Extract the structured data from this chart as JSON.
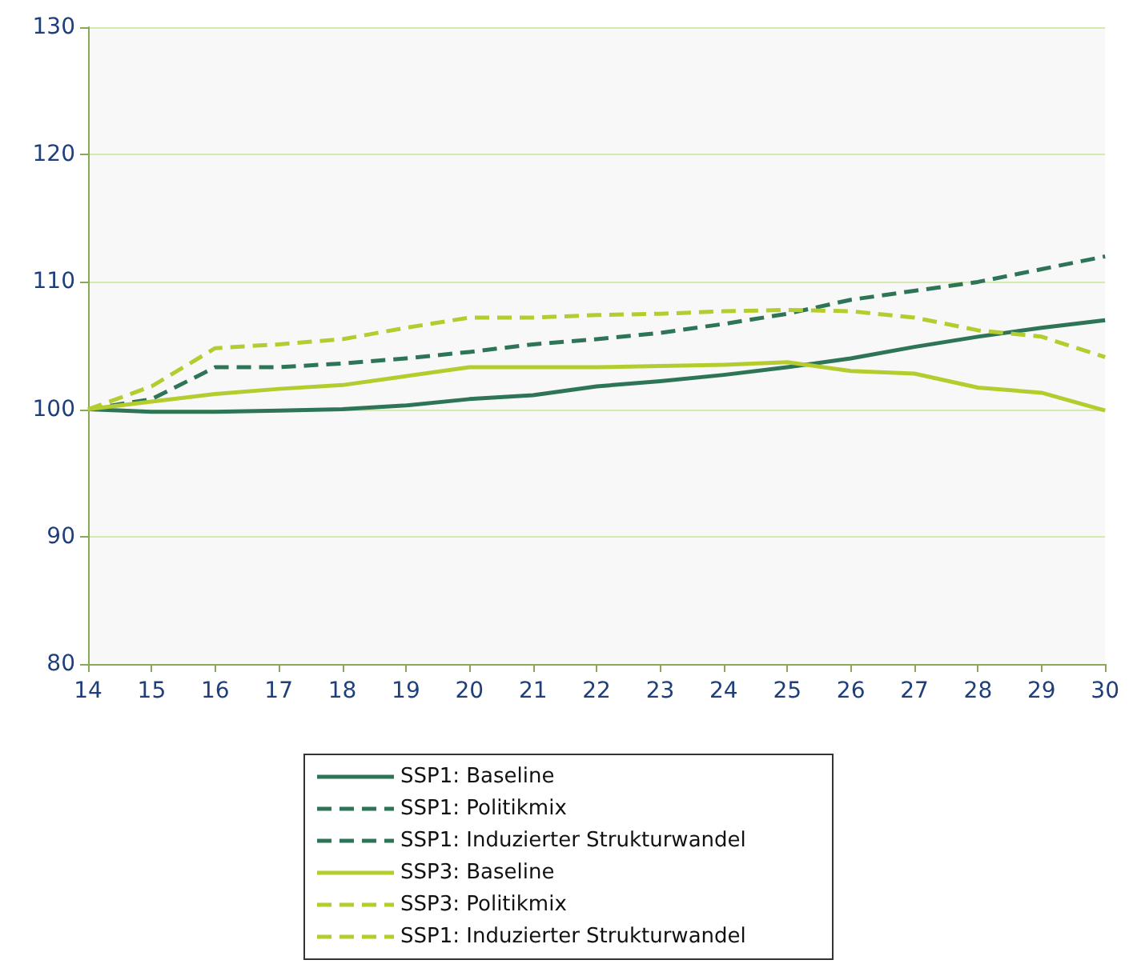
{
  "chart_data": {
    "type": "line",
    "categories": [
      "14",
      "15",
      "16",
      "17",
      "18",
      "19",
      "20",
      "21",
      "22",
      "23",
      "24",
      "25",
      "26",
      "27",
      "28",
      "29",
      "30"
    ],
    "ylim": [
      80,
      130
    ],
    "yticks": [
      80,
      90,
      100,
      110,
      120,
      130
    ],
    "grid": "y",
    "legend": "bottom",
    "marker": "none",
    "series": [
      {
        "name": "SSP1: Baseline",
        "color": "#2e7557",
        "line_style": "solid",
        "values": [
          100,
          99.8,
          99.8,
          99.9,
          100,
          100.3,
          100.8,
          101.1,
          101.8,
          102.2,
          102.7,
          103.3,
          104,
          104.9,
          105.7,
          106.4,
          107
        ]
      },
      {
        "name": "SSP1: Politikmix",
        "color": "#2e7557",
        "line_style": "dashed",
        "values": [
          null,
          null,
          null,
          null,
          null,
          null,
          null,
          null,
          null,
          null,
          null,
          null,
          null,
          null,
          null,
          null,
          null
        ]
      },
      {
        "name": "SSP1: Induzierter Strukturwandel",
        "color": "#2e7557",
        "line_style": "dashed",
        "values": [
          100,
          100.8,
          103.3,
          103.3,
          103.6,
          104,
          104.5,
          105.1,
          105.5,
          106,
          106.7,
          107.5,
          108.6,
          109.3,
          110,
          111,
          112
        ]
      },
      {
        "name": "SSP3: Baseline",
        "color": "#b5cc2f",
        "line_style": "solid",
        "values": [
          100,
          100.6,
          101.2,
          101.6,
          101.9,
          102.6,
          103.3,
          103.3,
          103.3,
          103.4,
          103.5,
          103.7,
          103,
          102.8,
          101.7,
          101.3,
          99.9
        ]
      },
      {
        "name": "SSP3: Politikmix",
        "color": "#b5cc2f",
        "line_style": "dashed",
        "values": [
          null,
          null,
          null,
          null,
          null,
          null,
          null,
          null,
          null,
          null,
          null,
          null,
          null,
          null,
          null,
          null,
          null
        ]
      },
      {
        "name": "SSP1: Induzierter Strukturwandel",
        "color": "#b5cc2f",
        "line_style": "dashed",
        "values": [
          100,
          101.8,
          104.8,
          105.1,
          105.5,
          106.4,
          107.2,
          107.2,
          107.4,
          107.5,
          107.7,
          107.8,
          107.7,
          107.2,
          106.2,
          105.7,
          104.1
        ]
      }
    ]
  }
}
